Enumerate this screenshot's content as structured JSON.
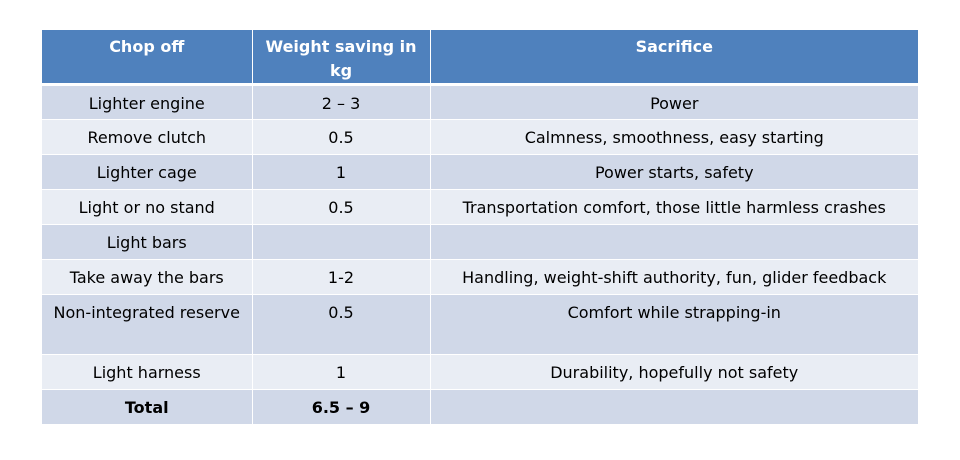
{
  "table": {
    "headers": [
      "Chop off",
      "Weight saving in kg",
      "Sacrifice"
    ],
    "rows": [
      [
        "Lighter engine",
        "2 – 3",
        "Power"
      ],
      [
        "Remove clutch",
        "0.5",
        "Calmness, smoothness,  easy starting"
      ],
      [
        "Lighter cage",
        "1",
        "Power starts, safety"
      ],
      [
        "Light or no stand",
        "0.5",
        "Transportation comfort, those little harmless crashes"
      ],
      [
        "Light bars",
        "",
        ""
      ],
      [
        "Take away the bars",
        "1-2",
        "Handling, weight-shift authority, fun, glider feedback"
      ],
      [
        "Non-integrated reserve",
        "0.5",
        "Comfort while strapping-in"
      ],
      [
        "Light harness",
        "1",
        "Durability, hopefully not safety"
      ]
    ],
    "total": [
      "Total",
      "6.5 – 9",
      ""
    ]
  },
  "colors": {
    "header_bg": "#4f81bd",
    "row_odd_bg": "#d0d8e8",
    "row_even_bg": "#e9edf4"
  }
}
